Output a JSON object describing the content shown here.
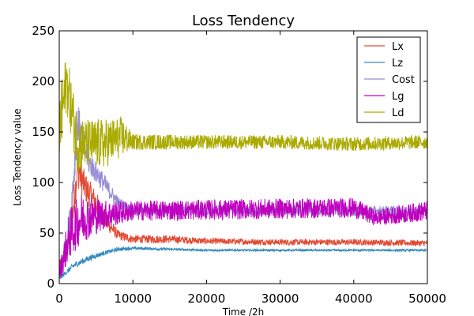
{
  "chart_data": {
    "type": "line",
    "title": "Loss Tendency",
    "xlabel": "Time /2h",
    "ylabel": "Loss Tendency value",
    "xlim": [
      0,
      50000
    ],
    "ylim": [
      0,
      250
    ],
    "xticks": [
      0,
      10000,
      20000,
      30000,
      40000,
      50000
    ],
    "yticks": [
      0,
      50,
      100,
      150,
      200,
      250
    ],
    "xtick_labels": [
      "0",
      "10000",
      "20000",
      "30000",
      "40000",
      "50000"
    ],
    "ytick_labels": [
      "0",
      "50",
      "100",
      "150",
      "200",
      "250"
    ],
    "grid": false,
    "legend_position": "top-right",
    "series": [
      {
        "name": "Lx",
        "color": "#e24a33",
        "x": [
          0,
          1500,
          2500,
          3500,
          5000,
          6500,
          8000,
          10000,
          15000,
          20000,
          30000,
          40000,
          50000
        ],
        "y": [
          15,
          45,
          115,
          95,
          80,
          60,
          48,
          44,
          44,
          42,
          41,
          41,
          40
        ],
        "noise": [
          6,
          15,
          20,
          15,
          12,
          8,
          5,
          4,
          4,
          3,
          3,
          3,
          3
        ]
      },
      {
        "name": "Lz",
        "color": "#348abd",
        "x": [
          0,
          2000,
          4000,
          6000,
          8000,
          10000,
          20000,
          30000,
          40000,
          50000
        ],
        "y": [
          5,
          18,
          25,
          30,
          34,
          35,
          33,
          33,
          33,
          33
        ],
        "noise": [
          2,
          3,
          3,
          2,
          2,
          1.5,
          1,
          1,
          1,
          1
        ]
      },
      {
        "name": "Cost",
        "color": "#988ed5",
        "x": [
          0,
          1500,
          2500,
          4000,
          6000,
          8000,
          10000,
          20000,
          30000,
          40000,
          50000
        ],
        "y": [
          10,
          60,
          160,
          120,
          100,
          80,
          72,
          72,
          72,
          72,
          72
        ],
        "noise": [
          5,
          20,
          20,
          12,
          10,
          6,
          5,
          5,
          5,
          5,
          5
        ]
      },
      {
        "name": "Lg",
        "color": "#bf00bf",
        "x": [
          0,
          1500,
          3000,
          6000,
          8000,
          10000,
          20000,
          30000,
          40000,
          43000,
          50000
        ],
        "y": [
          10,
          50,
          65,
          68,
          70,
          72,
          73,
          74,
          75,
          65,
          72
        ],
        "noise": [
          8,
          25,
          25,
          15,
          12,
          10,
          10,
          10,
          10,
          8,
          10
        ]
      },
      {
        "name": "Ld",
        "color": "#aaaa00",
        "x": [
          0,
          1000,
          2500,
          3500,
          6000,
          8500,
          10000,
          20000,
          30000,
          40000,
          50000
        ],
        "y": [
          150,
          200,
          138,
          138,
          138,
          145,
          140,
          140,
          140,
          138,
          140
        ],
        "noise": [
          40,
          30,
          30,
          25,
          25,
          20,
          8,
          7,
          7,
          7,
          7
        ]
      }
    ]
  }
}
